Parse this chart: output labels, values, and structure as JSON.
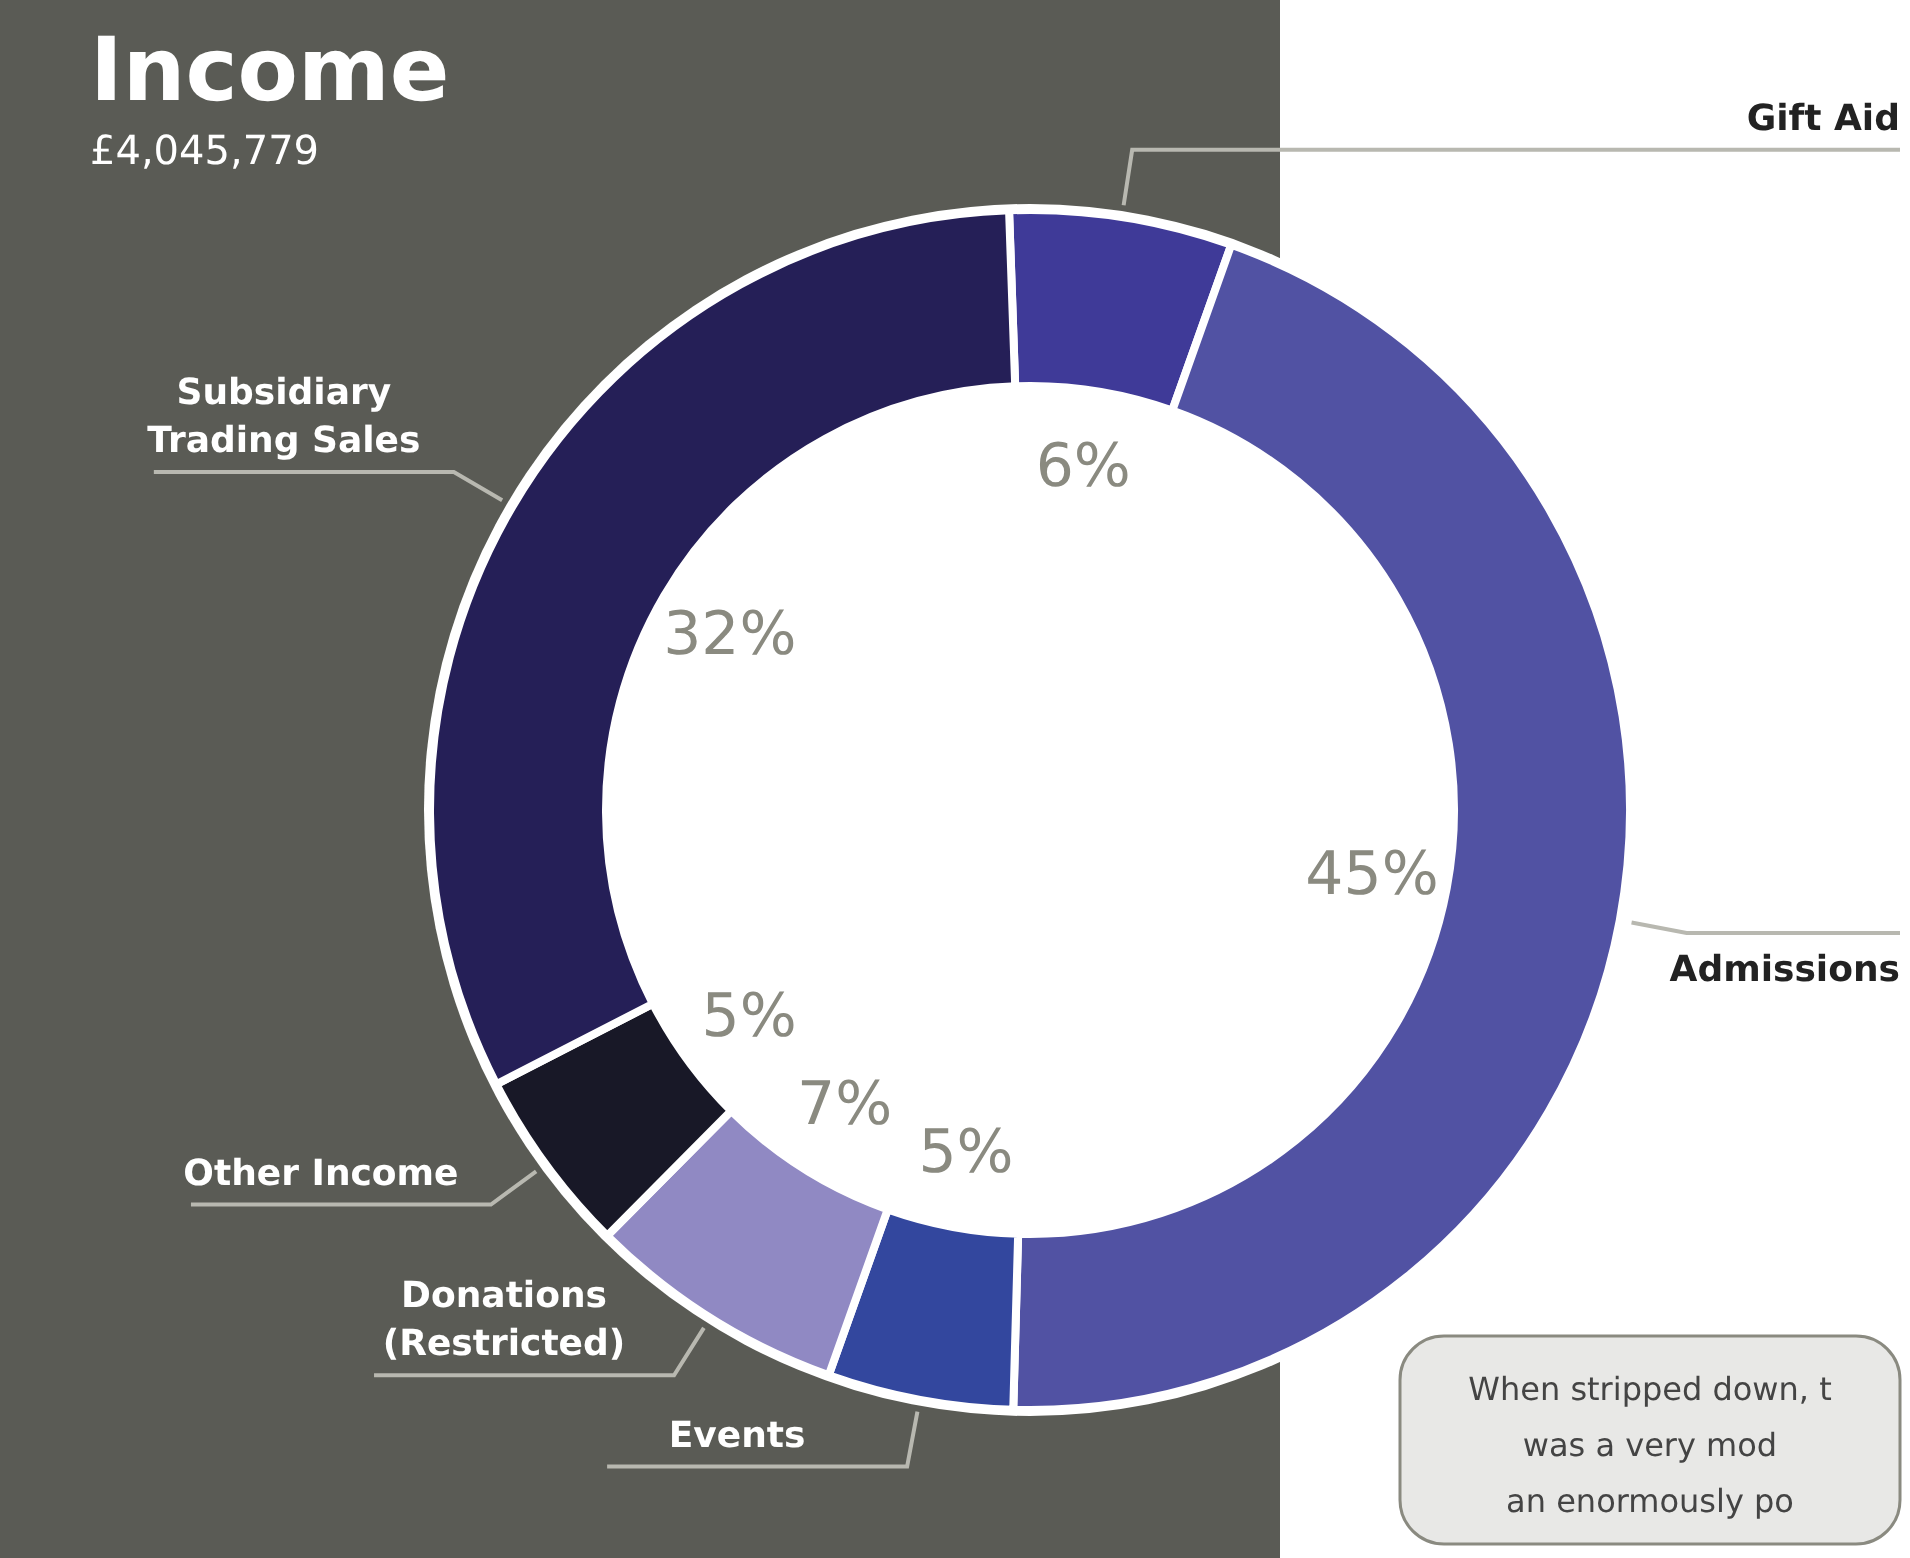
{
  "chart_data": {
    "type": "donut",
    "title": "Income",
    "subtitle": "£4,045,779",
    "categories": [
      "Gift Aid",
      "Admissions",
      "Events",
      "Donations (Restricted)",
      "Other Income",
      "Subsidiary Trading Sales"
    ],
    "values": [
      6,
      45,
      5,
      7,
      5,
      32
    ],
    "value_labels": [
      "6%",
      "45%",
      "5%",
      "7%",
      "5%",
      "32%"
    ],
    "colors": [
      "#3f3a98",
      "#5152a3",
      "#33479e",
      "#9089c3",
      "#181827",
      "#251f57"
    ],
    "annotations": [
      "When stripped down, t\nwas a very mod\nan enormously po"
    ]
  }
}
